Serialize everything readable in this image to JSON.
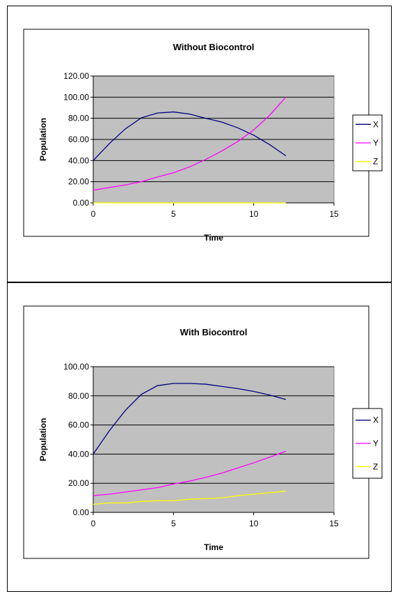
{
  "chart_data": [
    {
      "type": "line",
      "title": "Without Biocontrol",
      "xlabel": "Time",
      "ylabel": "Population",
      "xlim": [
        0,
        15
      ],
      "ylim": [
        0,
        120
      ],
      "x_ticks": [
        "0",
        "5",
        "10",
        "15"
      ],
      "y_ticks": [
        "0.00",
        "20.00",
        "40.00",
        "60.00",
        "80.00",
        "100.00",
        "120.00"
      ],
      "grid": "horizontal",
      "plot_background": "#c0c0c0",
      "legend_position": "right",
      "x": [
        0,
        1,
        2,
        3,
        4,
        5,
        6,
        7,
        8,
        9,
        10,
        11,
        12
      ],
      "series": [
        {
          "name": "X",
          "color": "#000080",
          "values": [
            40,
            56,
            70,
            80.5,
            85,
            86,
            84,
            80,
            76.5,
            71,
            64,
            55,
            44.5
          ]
        },
        {
          "name": "Y",
          "color": "#ff00ff",
          "values": [
            12,
            14.5,
            17,
            20,
            24.5,
            28.5,
            34,
            41,
            49,
            58,
            69,
            83,
            100
          ]
        },
        {
          "name": "Z",
          "color": "#ffff00",
          "values": [
            0,
            0,
            0,
            0,
            0,
            0,
            0,
            0,
            0,
            0,
            0,
            0,
            0
          ]
        }
      ]
    },
    {
      "type": "line",
      "title": "With Biocontrol",
      "xlabel": "Time",
      "ylabel": "Population",
      "xlim": [
        0,
        15
      ],
      "ylim": [
        0,
        100
      ],
      "x_ticks": [
        "0",
        "5",
        "10",
        "15"
      ],
      "y_ticks": [
        "0.00",
        "20.00",
        "40.00",
        "60.00",
        "80.00",
        "100.00"
      ],
      "grid": "horizontal",
      "plot_background": "#c0c0c0",
      "legend_position": "right",
      "x": [
        0,
        1,
        2,
        3,
        4,
        5,
        6,
        7,
        8,
        9,
        10,
        11,
        12
      ],
      "series": [
        {
          "name": "X",
          "color": "#000080",
          "values": [
            40,
            56,
            70,
            81,
            87,
            88.5,
            88.5,
            88,
            86.5,
            85,
            83,
            80.5,
            77.5
          ]
        },
        {
          "name": "Y",
          "color": "#ff00ff",
          "values": [
            11.5,
            12.5,
            14,
            15.5,
            17,
            19.5,
            21.5,
            24,
            27,
            30.5,
            34,
            38,
            42
          ]
        },
        {
          "name": "Z",
          "color": "#ffff00",
          "values": [
            5.5,
            6.5,
            6.5,
            7.5,
            8,
            8,
            9,
            9.5,
            10,
            11.5,
            12.5,
            13.5,
            14.5
          ]
        }
      ]
    }
  ]
}
